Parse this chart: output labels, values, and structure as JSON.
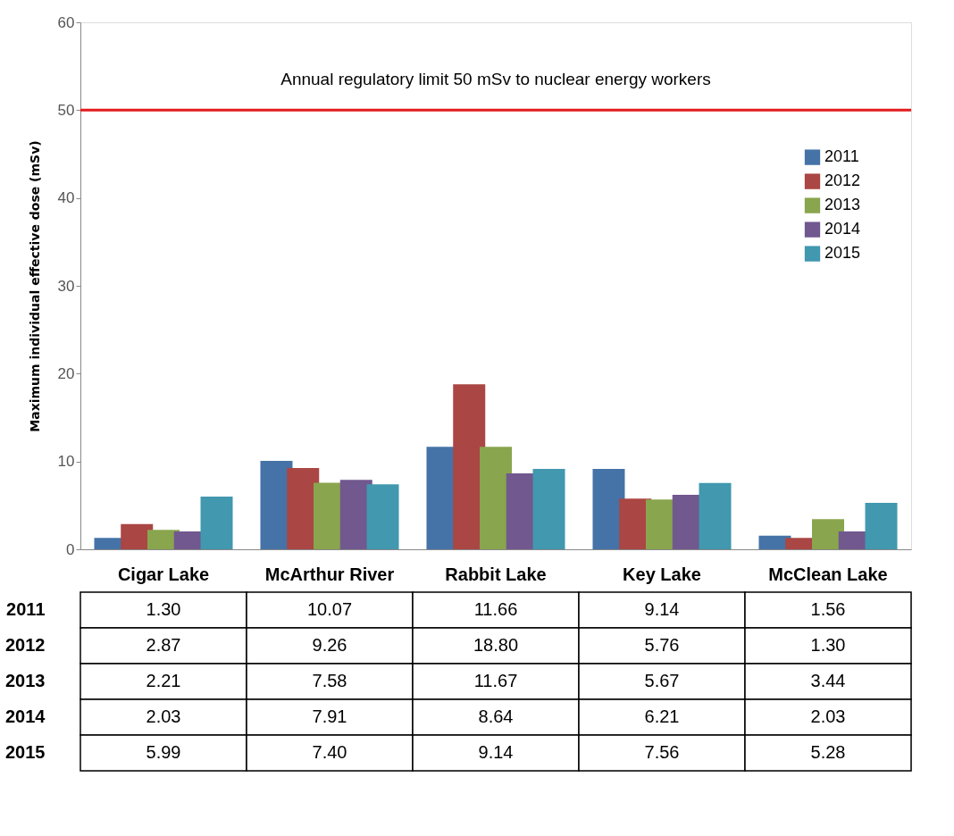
{
  "chart_data": {
    "type": "bar",
    "ylabel": "Maximum  individual  effective dose  (mSv)",
    "categories": [
      "Cigar Lake",
      "McArthur River",
      "Rabbit Lake",
      "Key Lake",
      "McClean Lake"
    ],
    "series": [
      {
        "name": "2011",
        "color": "#4573a7",
        "values": [
          1.3,
          10.07,
          11.66,
          9.14,
          1.56
        ],
        "value_labels": [
          "1.30",
          "10.07",
          "11.66",
          "9.14",
          "1.56"
        ]
      },
      {
        "name": "2012",
        "color": "#aa4643",
        "values": [
          2.87,
          9.26,
          18.8,
          5.76,
          1.3
        ],
        "value_labels": [
          "2.87",
          "9.26",
          "18.80",
          "5.76",
          "1.30"
        ]
      },
      {
        "name": "2013",
        "color": "#89a54e",
        "values": [
          2.21,
          7.58,
          11.67,
          5.67,
          3.44
        ],
        "value_labels": [
          "2.21",
          "7.58",
          "11.67",
          "5.67",
          "3.44"
        ]
      },
      {
        "name": "2014",
        "color": "#71588f",
        "values": [
          2.03,
          7.91,
          8.64,
          6.21,
          2.03
        ],
        "value_labels": [
          "2.03",
          "7.91",
          "8.64",
          "6.21",
          "2.03"
        ]
      },
      {
        "name": "2015",
        "color": "#4198af",
        "values": [
          5.99,
          7.4,
          9.14,
          7.56,
          5.28
        ],
        "value_labels": [
          "5.99",
          "7.40",
          "9.14",
          "7.56",
          "5.28"
        ]
      }
    ],
    "ylim": [
      0,
      60
    ],
    "yticks": [
      0,
      10,
      20,
      30,
      40,
      50,
      60
    ],
    "ref_lines": [
      {
        "axis": "y",
        "value": 50,
        "label": "Annual regulatory limit 50 mSv to nuclear energy workers",
        "color": "#e31a1c"
      }
    ],
    "legend": "top right",
    "grid": false,
    "tick_labels": "y"
  }
}
